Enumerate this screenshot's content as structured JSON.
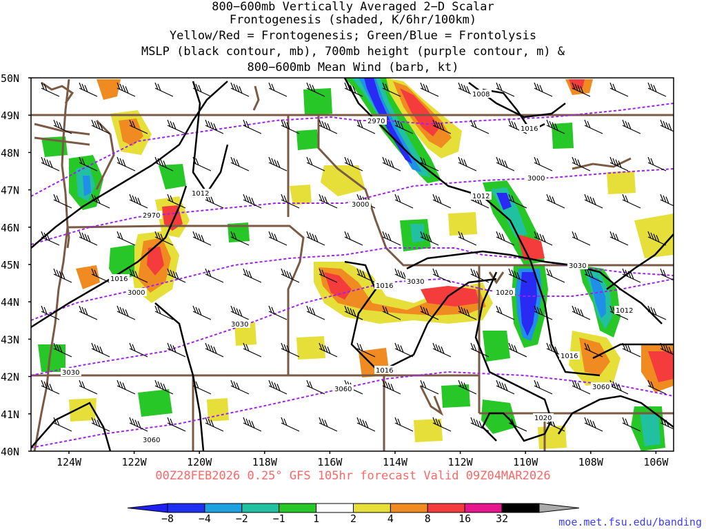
{
  "title": {
    "lines": [
      "800−600mb Vertically Averaged 2−D Scalar",
      "Frontogenesis (shaded, K/6hr/100km)",
      "Yellow/Red = Frontogenesis;  Green/Blue = Frontolysis",
      "MSLP (black contour, mb), 700mb height (purple contour, m) &",
      "800−600mb Mean Wind (barb, kt)"
    ]
  },
  "map": {
    "lat_labels": [
      "50N",
      "49N",
      "48N",
      "47N",
      "46N",
      "45N",
      "44N",
      "43N",
      "42N",
      "41N",
      "40N"
    ],
    "lon_labels": [
      "124W",
      "122W",
      "120W",
      "118W",
      "116W",
      "114W",
      "112W",
      "110W",
      "108W",
      "106W"
    ],
    "mslp_labels": [
      "1008",
      "1012",
      "1012",
      "1016",
      "1016",
      "1016",
      "1016",
      "1020",
      "1020",
      "1012",
      "1016"
    ],
    "height_labels": [
      "2970",
      "2970",
      "3000",
      "3000",
      "3000",
      "3030",
      "3030",
      "3030",
      "3030",
      "3060",
      "3060",
      "3060",
      "3030"
    ],
    "colors": {
      "mslp": "#000000",
      "height": "#a020f0",
      "border": "#7b5a44",
      "blue_strong": "#2a2af5",
      "blue_mid": "#1f8fe8",
      "teal": "#20c0a0",
      "green": "#26c726",
      "yellow": "#e6df3a",
      "orange": "#f08b22",
      "red": "#f43c3c",
      "magenta": "#e6168c"
    }
  },
  "valid_text": "00Z28FEB2026 0.25° GFS 105hr forecast Valid 09Z04MAR2026",
  "colorbar": {
    "labels": [
      "−8",
      "−4",
      "−2",
      "−1",
      "1",
      "2",
      "4",
      "8",
      "16",
      "32"
    ],
    "colors": [
      "#2030f0",
      "#1fa0e0",
      "#20c0a0",
      "#26c726",
      "#ffffff",
      "#e6df3a",
      "#f08b22",
      "#f43c3c",
      "#e6168c",
      "#000000"
    ]
  },
  "credit": "moe.met.fsu.edu/banding"
}
